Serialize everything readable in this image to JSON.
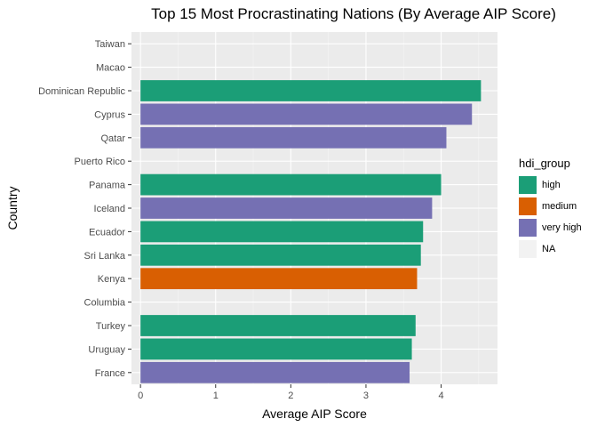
{
  "chart_data": {
    "type": "bar",
    "orientation": "horizontal",
    "title": "Top 15 Most Procrastinating Nations (By Average AIP Score)",
    "xlabel": "Average AIP Score",
    "ylabel": "Country",
    "xlim": [
      -0.12,
      4.75
    ],
    "xticks": [
      "0",
      "1",
      "2",
      "3",
      "4"
    ],
    "grid": true,
    "legend_position": "right",
    "legend_title": "hdi_group",
    "categories": [
      "Taiwan",
      "Macao",
      "Dominican Republic",
      "Cyprus",
      "Qatar",
      "Puerto Rico",
      "Panama",
      "Iceland",
      "Ecuador",
      "Sri Lanka",
      "Kenya",
      "Columbia",
      "Turkey",
      "Uruguay",
      "France"
    ],
    "values": [
      null,
      null,
      4.53,
      4.41,
      4.07,
      null,
      4.0,
      3.88,
      3.76,
      3.73,
      3.68,
      null,
      3.66,
      3.61,
      3.58
    ],
    "groups": [
      "NA",
      "NA",
      "high",
      "very high",
      "very high",
      "NA",
      "high",
      "very high",
      "high",
      "high",
      "medium",
      "NA",
      "high",
      "high",
      "very high"
    ],
    "legend": [
      {
        "label": "high",
        "color": "#1b9e77"
      },
      {
        "label": "medium",
        "color": "#d95f02"
      },
      {
        "label": "very high",
        "color": "#7570b3"
      },
      {
        "label": "NA",
        "color": "#f2f2f2"
      }
    ]
  }
}
